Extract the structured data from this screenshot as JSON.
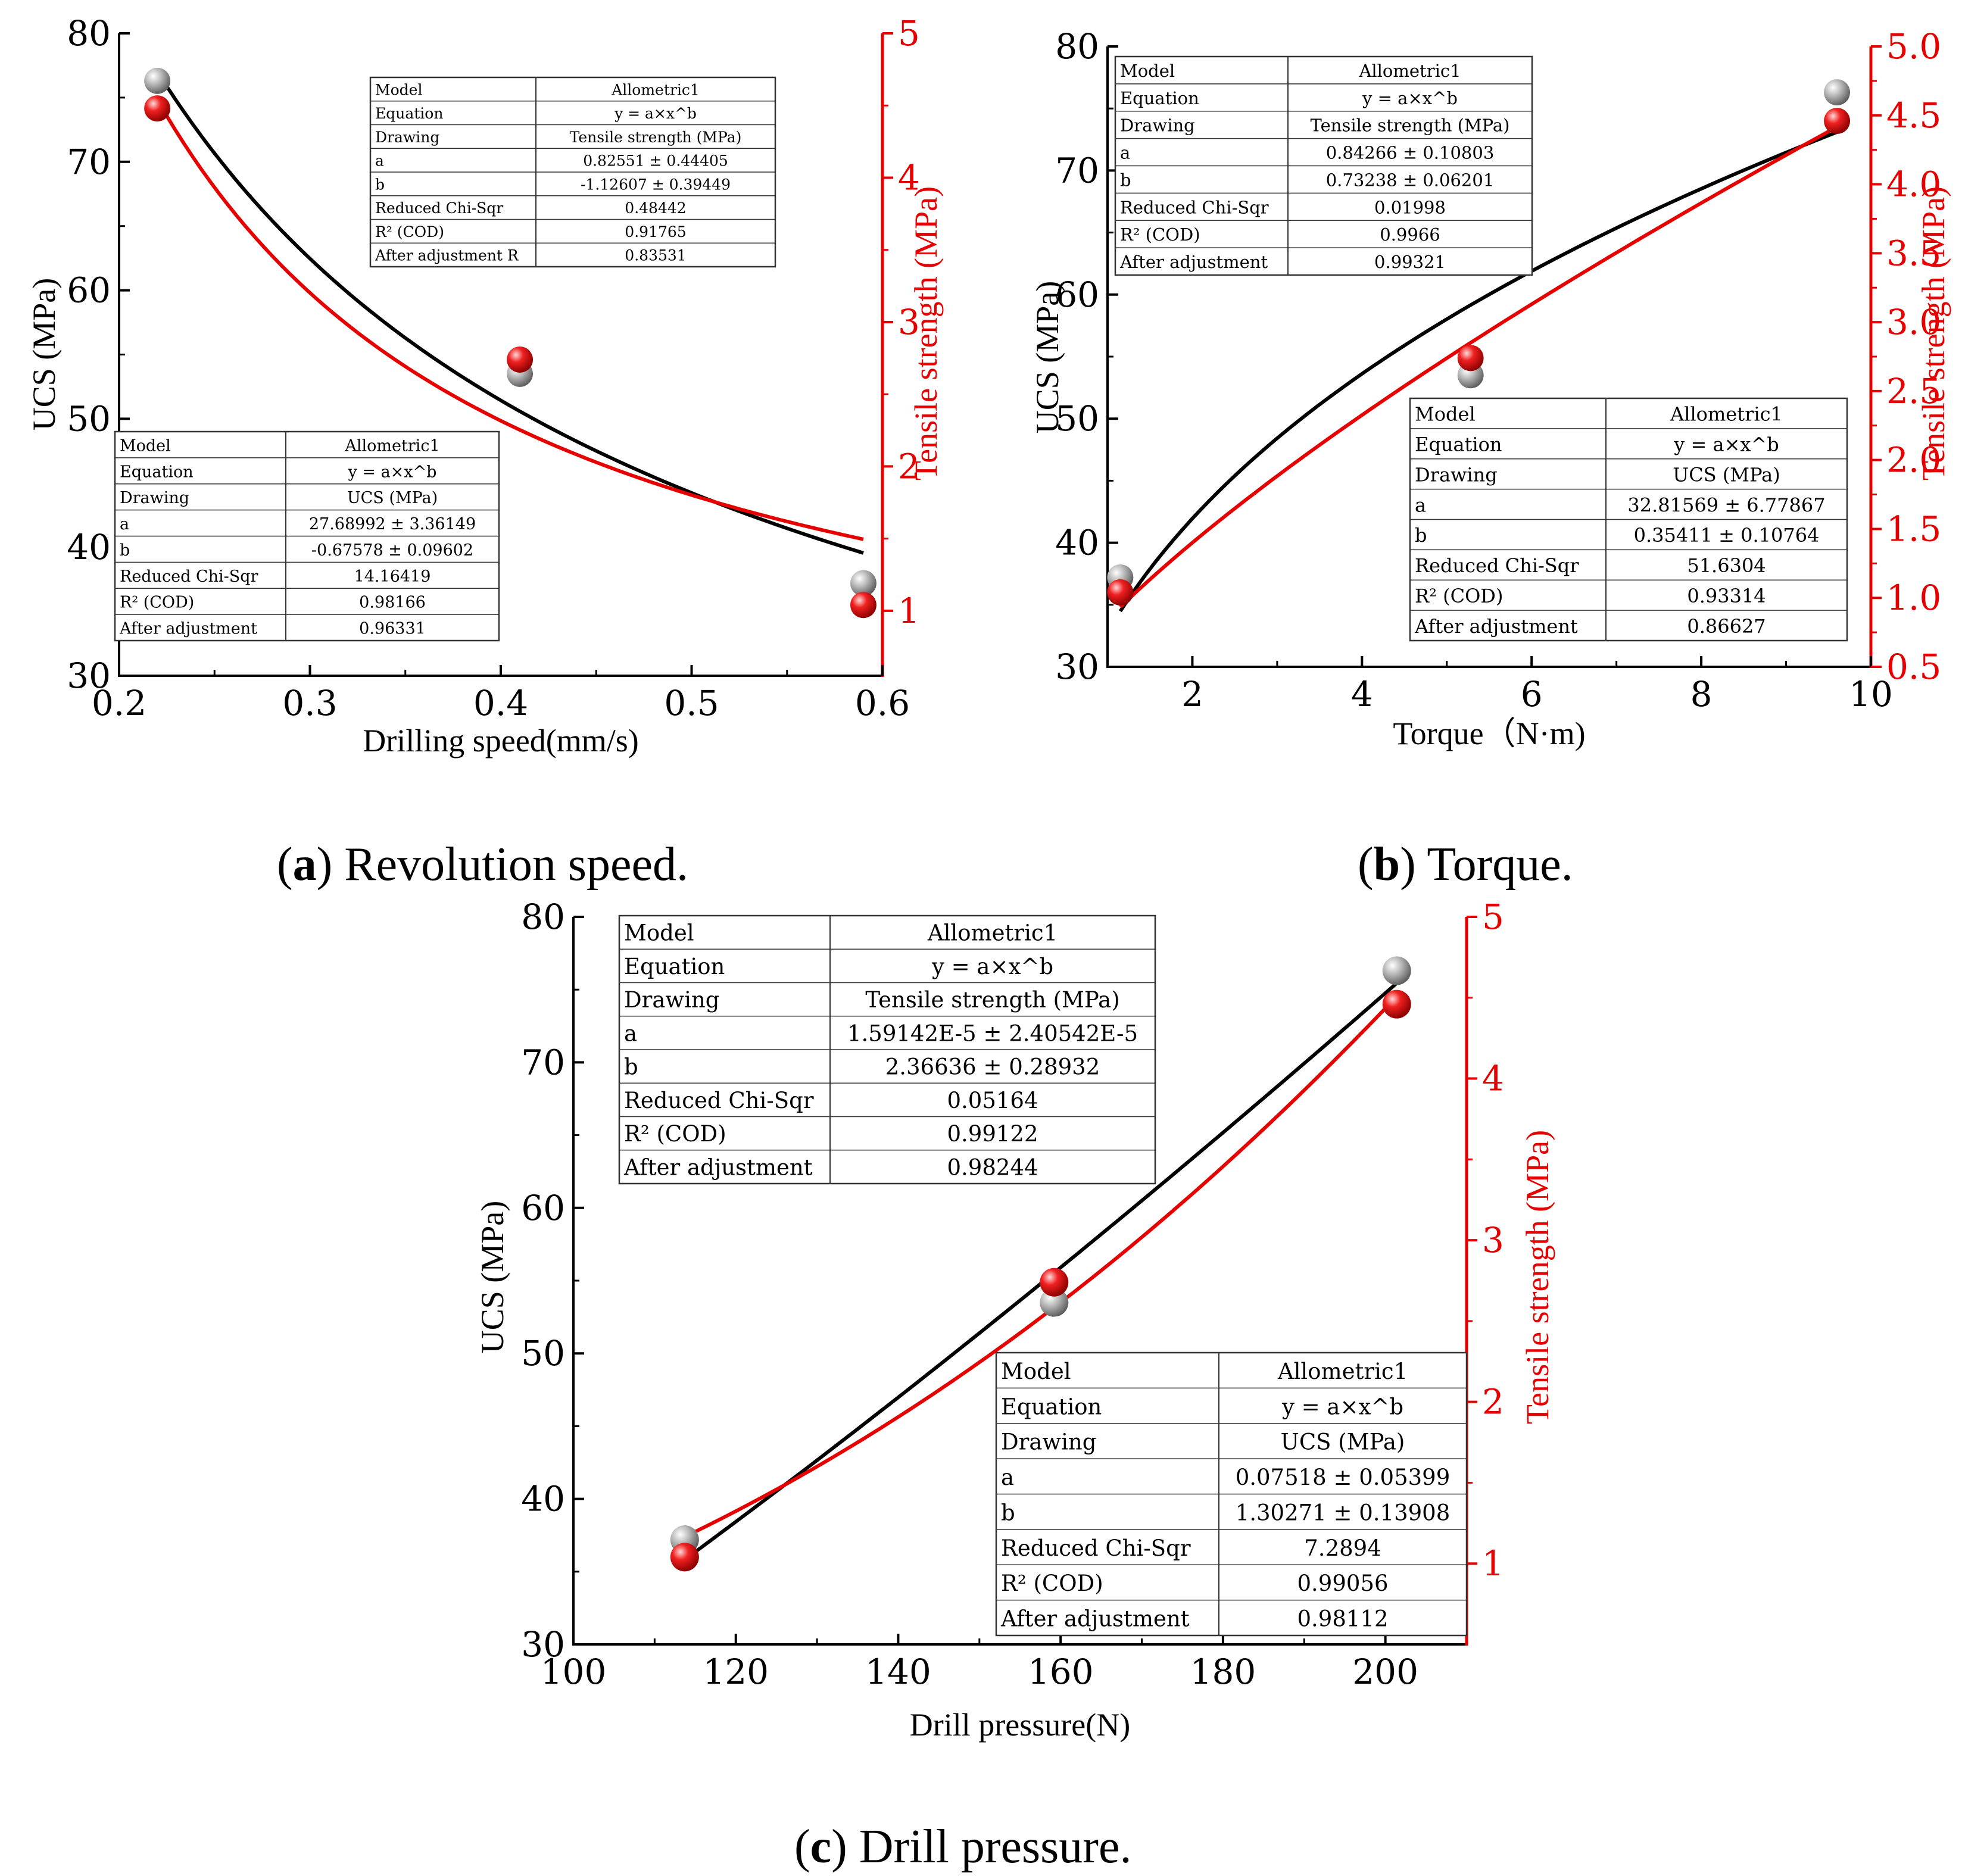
{
  "colors": {
    "ucs": "#000000",
    "tensile": "#e60000",
    "ucs_point": "#9c9c9c",
    "tensile_point": "#e60000",
    "table_border": "#333333"
  },
  "chart_data": [
    {
      "id": "a",
      "type": "scatter",
      "caption_letter": "a",
      "caption_rest": ") Revolution speed.",
      "xlabel": "Drilling speed(mm/s)",
      "ylabel_left": "UCS (MPa)",
      "ylabel_right": "Tensile strength (MPa)",
      "xlim": [
        0.2,
        0.6
      ],
      "ylim_left": [
        30,
        80
      ],
      "ylim_right": [
        0.55,
        5
      ],
      "x_ticks": [
        "0.2",
        "0.3",
        "0.4",
        "0.5",
        "0.6"
      ],
      "x_tick_values": [
        0.2,
        0.3,
        0.4,
        0.5,
        0.6
      ],
      "y_left_ticks": [
        "30",
        "40",
        "50",
        "60",
        "70",
        "80"
      ],
      "y_left_tick_values": [
        30,
        40,
        50,
        60,
        70,
        80
      ],
      "y_right_ticks": [
        "1",
        "2",
        "3",
        "4",
        "5"
      ],
      "y_right_tick_values": [
        1,
        2,
        3,
        4,
        5
      ],
      "series": [
        {
          "name": "UCS (MPa)",
          "axis": "left",
          "x": [
            0.22,
            0.41,
            0.59
          ],
          "y": [
            76.3,
            53.5,
            37.2
          ],
          "fit": {
            "model": "Allometric1",
            "a": 27.68992,
            "b": -0.67578
          }
        },
        {
          "name": "Tensile strength (MPa)",
          "axis": "right",
          "x": [
            0.22,
            0.41,
            0.59
          ],
          "y": [
            4.48,
            2.74,
            1.04
          ],
          "fit": {
            "model": "Allometric1",
            "a": 0.82551,
            "b": -1.12607
          }
        }
      ],
      "tables": [
        {
          "rows": [
            [
              "Model",
              "Allometric1"
            ],
            [
              "Equation",
              "y = a×x^b"
            ],
            [
              "Drawing",
              "Tensile strength (MPa)"
            ],
            [
              "a",
              "0.82551 ± 0.44405"
            ],
            [
              "b",
              "-1.12607 ± 0.39449"
            ],
            [
              "Reduced Chi-Sqr",
              "0.48442"
            ],
            [
              "R² (COD)",
              "0.91765"
            ],
            [
              "After adjustment R",
              "0.83531"
            ]
          ]
        },
        {
          "rows": [
            [
              "Model",
              "Allometric1"
            ],
            [
              "Equation",
              "y = a×x^b"
            ],
            [
              "Drawing",
              "UCS (MPa)"
            ],
            [
              "a",
              "27.68992 ± 3.36149"
            ],
            [
              "b",
              "-0.67578 ± 0.09602"
            ],
            [
              "Reduced Chi-Sqr",
              "14.16419"
            ],
            [
              "R² (COD)",
              "0.98166"
            ],
            [
              "After adjustment",
              "0.96331"
            ]
          ]
        }
      ]
    },
    {
      "id": "b",
      "type": "scatter",
      "caption_letter": "b",
      "caption_rest": ") Torque.",
      "xlabel": "Torque（N·m)",
      "ylabel_left": "UCS (MPa)",
      "ylabel_right": "Tensile strength (MPa)",
      "xlim": [
        1.0,
        10.0
      ],
      "ylim_left": [
        30,
        80
      ],
      "ylim_right": [
        0.5,
        5.0
      ],
      "x_ticks": [
        "2",
        "4",
        "6",
        "8",
        "10"
      ],
      "x_tick_values": [
        2,
        4,
        6,
        8,
        10
      ],
      "y_left_ticks": [
        "30",
        "40",
        "50",
        "60",
        "70",
        "80"
      ],
      "y_left_tick_values": [
        30,
        40,
        50,
        60,
        70,
        80
      ],
      "y_right_ticks": [
        "0.5",
        "1.0",
        "1.5",
        "2.0",
        "2.5",
        "3.0",
        "3.5",
        "4.0",
        "4.5",
        "5.0"
      ],
      "y_right_tick_values": [
        0.5,
        1.0,
        1.5,
        2.0,
        2.5,
        3.0,
        3.5,
        4.0,
        4.5,
        5.0
      ],
      "series": [
        {
          "name": "UCS (MPa)",
          "axis": "left",
          "x": [
            1.15,
            5.28,
            9.6
          ],
          "y": [
            37.2,
            53.5,
            76.3
          ],
          "fit": {
            "model": "Allometric1",
            "a": 32.81569,
            "b": 0.35411
          }
        },
        {
          "name": "Tensile strength (MPa)",
          "axis": "right",
          "x": [
            1.15,
            5.28,
            9.6
          ],
          "y": [
            1.04,
            2.74,
            4.46
          ],
          "fit": {
            "model": "Allometric1",
            "a": 0.84266,
            "b": 0.73238
          }
        }
      ],
      "tables": [
        {
          "rows": [
            [
              "Model",
              "Allometric1"
            ],
            [
              "Equation",
              "y = a×x^b"
            ],
            [
              "Drawing",
              "Tensile strength (MPa)"
            ],
            [
              "a",
              "0.84266 ± 0.10803"
            ],
            [
              "b",
              "0.73238 ± 0.06201"
            ],
            [
              "Reduced Chi-Sqr",
              "0.01998"
            ],
            [
              "R² (COD)",
              "0.9966"
            ],
            [
              "After adjustment",
              "0.99321"
            ]
          ]
        },
        {
          "rows": [
            [
              "Model",
              "Allometric1"
            ],
            [
              "Equation",
              "y = a×x^b"
            ],
            [
              "Drawing",
              "UCS (MPa)"
            ],
            [
              "a",
              "32.81569 ± 6.77867"
            ],
            [
              "b",
              "0.35411 ± 0.10764"
            ],
            [
              "Reduced Chi-Sqr",
              "51.6304"
            ],
            [
              "R² (COD)",
              "0.93314"
            ],
            [
              "After adjustment",
              "0.86627"
            ]
          ]
        }
      ]
    },
    {
      "id": "c",
      "type": "scatter",
      "caption_letter": "c",
      "caption_rest": ") Drill pressure.",
      "xlabel": "Drill pressure(N)",
      "ylabel_left": "UCS (MPa)",
      "ylabel_right": "Tensile strength (MPa)",
      "xlim": [
        100,
        210
      ],
      "ylim_left": [
        30,
        80
      ],
      "ylim_right": [
        0.5,
        5
      ],
      "x_ticks": [
        "100",
        "120",
        "140",
        "160",
        "180",
        "200"
      ],
      "x_tick_values": [
        100,
        120,
        140,
        160,
        180,
        200
      ],
      "y_left_ticks": [
        "30",
        "40",
        "50",
        "60",
        "70",
        "80"
      ],
      "y_left_tick_values": [
        30,
        40,
        50,
        60,
        70,
        80
      ],
      "y_right_ticks": [
        "1",
        "2",
        "3",
        "4",
        "5"
      ],
      "y_right_tick_values": [
        1,
        2,
        3,
        4,
        5
      ],
      "series": [
        {
          "name": "UCS (MPa)",
          "axis": "left",
          "x": [
            113.7,
            159.2,
            201.4
          ],
          "y": [
            37.2,
            53.5,
            76.3
          ],
          "fit": {
            "model": "Allometric1",
            "a": 0.07518,
            "b": 1.30271
          }
        },
        {
          "name": "Tensile strength (MPa)",
          "axis": "right",
          "x": [
            113.7,
            159.2,
            201.4
          ],
          "y": [
            1.04,
            2.74,
            4.46
          ],
          "fit": {
            "model": "Allometric1",
            "a": 1.59142e-05,
            "b": 2.36636
          }
        }
      ],
      "tables": [
        {
          "rows": [
            [
              "Model",
              "Allometric1"
            ],
            [
              "Equation",
              "y = a×x^b"
            ],
            [
              "Drawing",
              "Tensile strength (MPa)"
            ],
            [
              "a",
              "1.59142E-5 ± 2.40542E-5"
            ],
            [
              "b",
              "2.36636 ± 0.28932"
            ],
            [
              "Reduced Chi-Sqr",
              "0.05164"
            ],
            [
              "R² (COD)",
              "0.99122"
            ],
            [
              "After adjustment",
              "0.98244"
            ]
          ]
        },
        {
          "rows": [
            [
              "Model",
              "Allometric1"
            ],
            [
              "Equation",
              "y = a×x^b"
            ],
            [
              "Drawing",
              "UCS (MPa)"
            ],
            [
              "a",
              "0.07518 ± 0.05399"
            ],
            [
              "b",
              "1.30271 ± 0.13908"
            ],
            [
              "Reduced Chi-Sqr",
              "7.2894"
            ],
            [
              "R² (COD)",
              "0.99056"
            ],
            [
              "After adjustment",
              "0.98112"
            ]
          ]
        }
      ]
    }
  ]
}
